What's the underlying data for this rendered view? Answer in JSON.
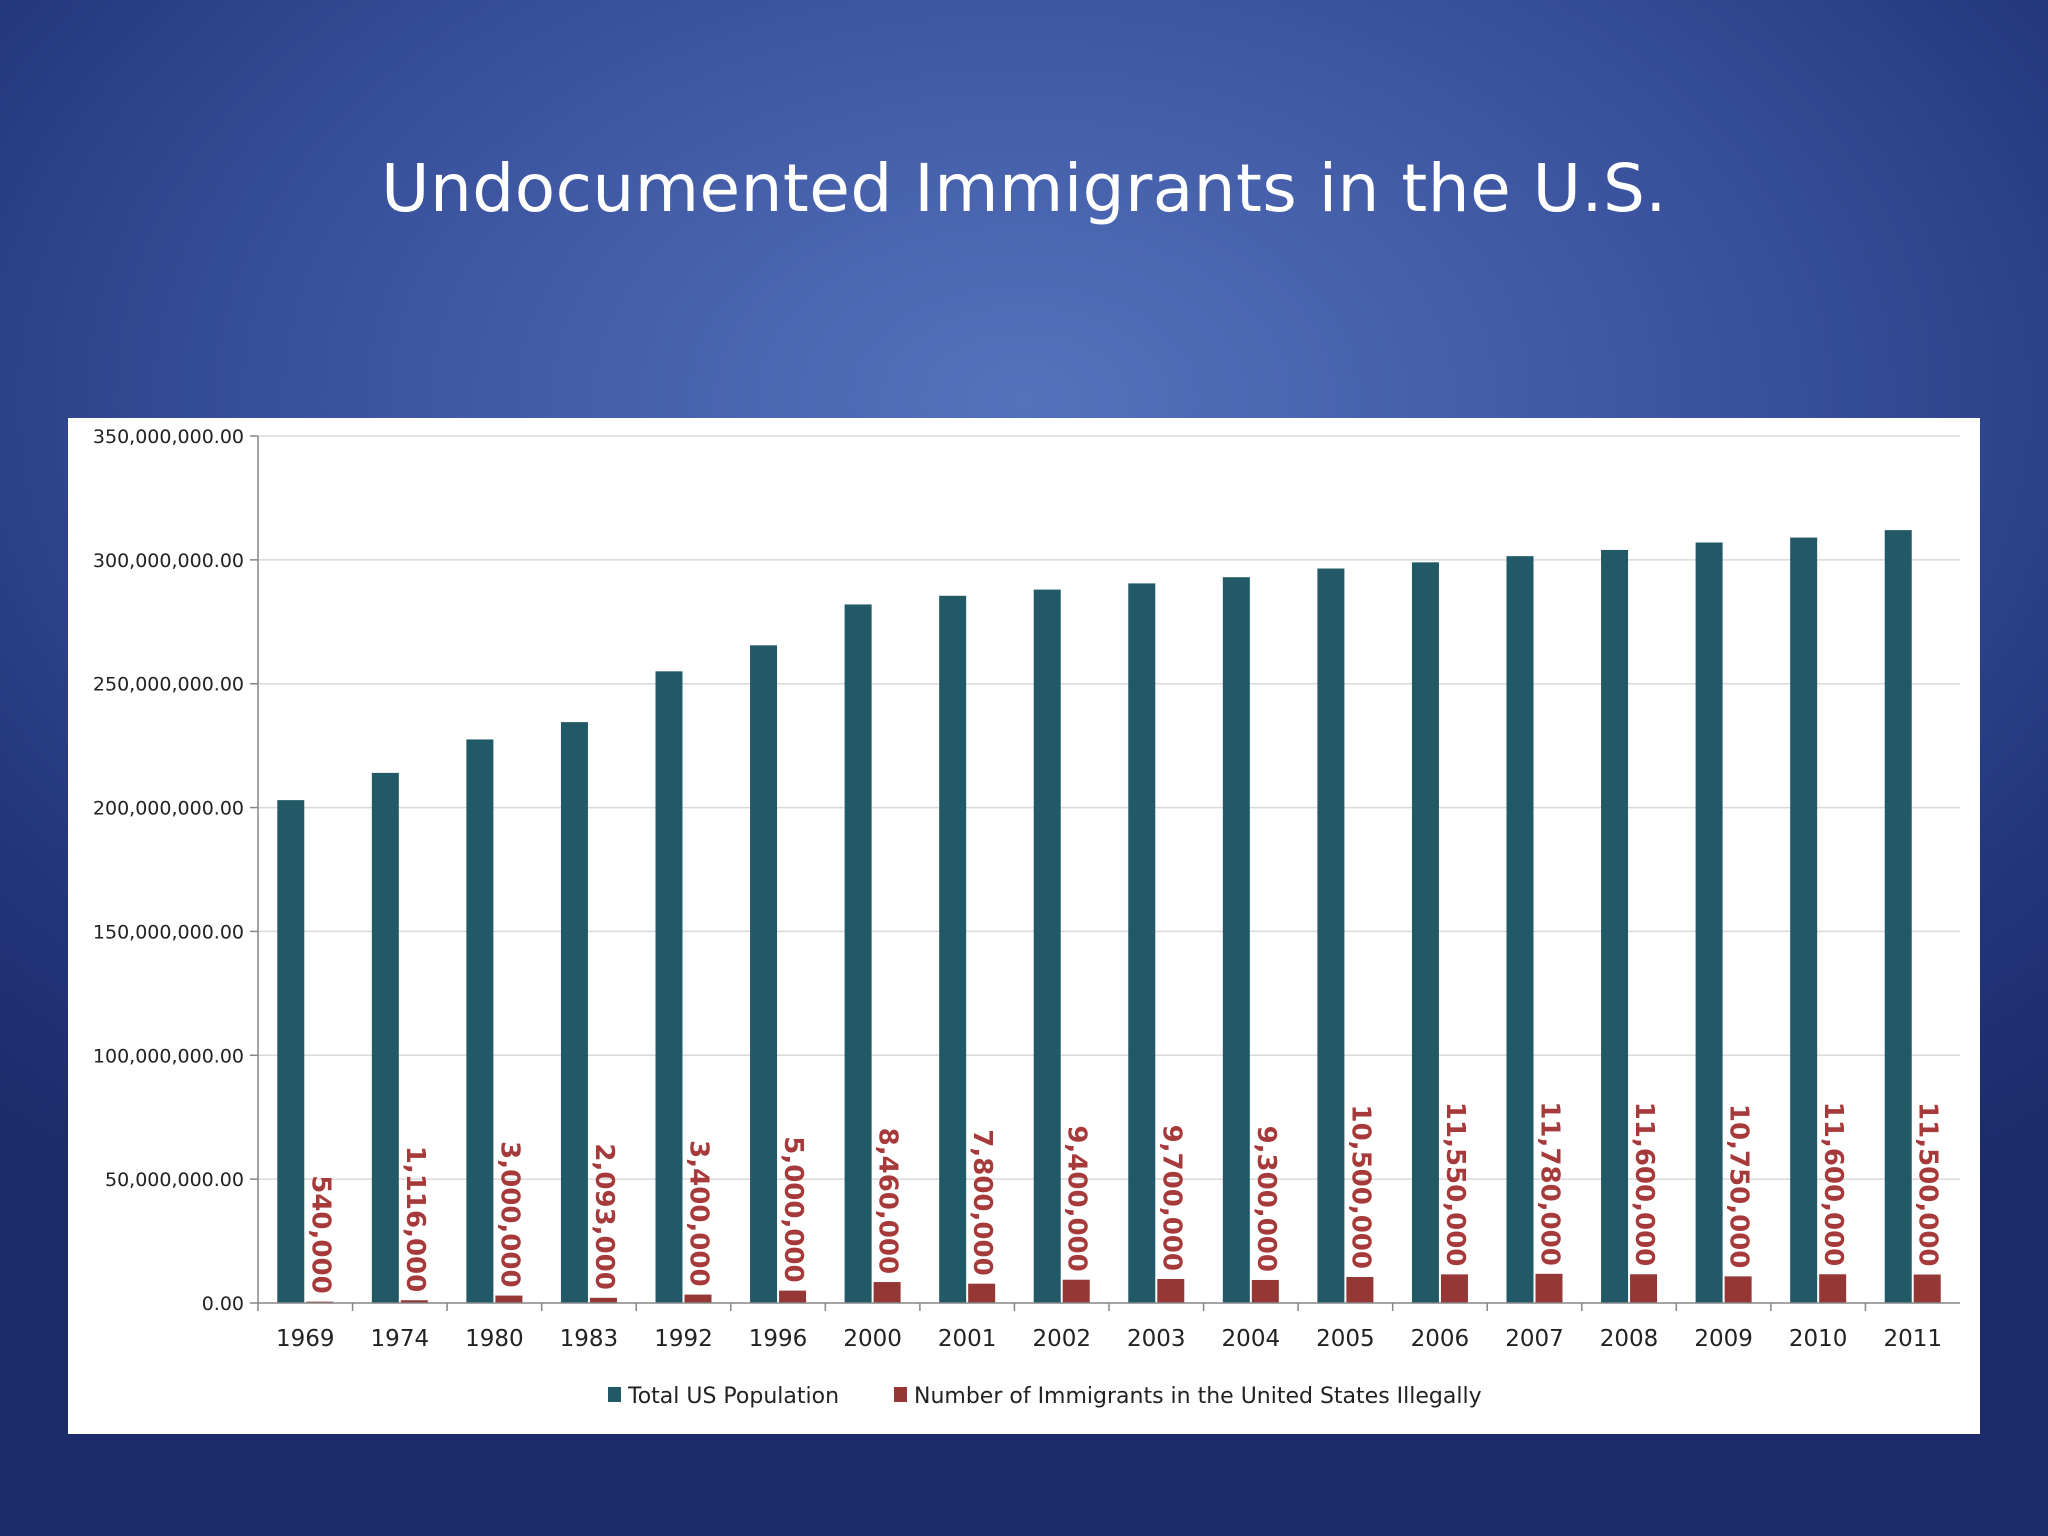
{
  "slide": {
    "title": "Undocumented Immigrants in the U.S."
  },
  "colors": {
    "total_population": "#215967",
    "immigrants": "#953735",
    "data_label": "#a63a3a",
    "gridline": "#d9d9d9",
    "axis": "#868686"
  },
  "chart_data": {
    "type": "bar",
    "title": "",
    "xlabel": "",
    "ylabel": "",
    "ylim": [
      0,
      350000000
    ],
    "y_ticks": [
      0,
      50000000,
      100000000,
      150000000,
      200000000,
      250000000,
      300000000,
      350000000
    ],
    "y_tick_labels": [
      "0.00",
      "50,000,000.00",
      "100,000,000.00",
      "150,000,000.00",
      "200,000,000.00",
      "250,000,000.00",
      "300,000,000.00",
      "350,000,000.00"
    ],
    "grid": true,
    "legend_position": "bottom",
    "categories": [
      "1969",
      "1974",
      "1980",
      "1983",
      "1992",
      "1996",
      "2000",
      "2001",
      "2002",
      "2003",
      "2004",
      "2005",
      "2006",
      "2007",
      "2008",
      "2009",
      "2010",
      "2011"
    ],
    "series": [
      {
        "name": "Total US Population",
        "color": "#215967",
        "values": [
          203000000,
          214000000,
          227500000,
          234500000,
          255000000,
          265500000,
          282000000,
          285500000,
          288000000,
          290500000,
          293000000,
          296500000,
          299000000,
          301500000,
          304000000,
          307000000,
          309000000,
          312000000
        ]
      },
      {
        "name": "Number of Immigrants in the United States Illegally",
        "color": "#953735",
        "values": [
          540000,
          1116000,
          3000000,
          2093000,
          3400000,
          5000000,
          8460000,
          7800000,
          9400000,
          9700000,
          9300000,
          10500000,
          11550000,
          11780000,
          11600000,
          10750000,
          11600000,
          11500000
        ],
        "data_labels": [
          "540,000",
          "1,116,000",
          "3,000,000",
          "2,093,000",
          "3,400,000",
          "5,000,000",
          "8,460,000",
          "7,800,000",
          "9,400,000",
          "9,700,000",
          "9,300,000",
          "10,500,000",
          "11,550,000",
          "11,780,000",
          "11,600,000",
          "10,750,000",
          "11,600,000",
          "11,500,000"
        ]
      }
    ]
  }
}
